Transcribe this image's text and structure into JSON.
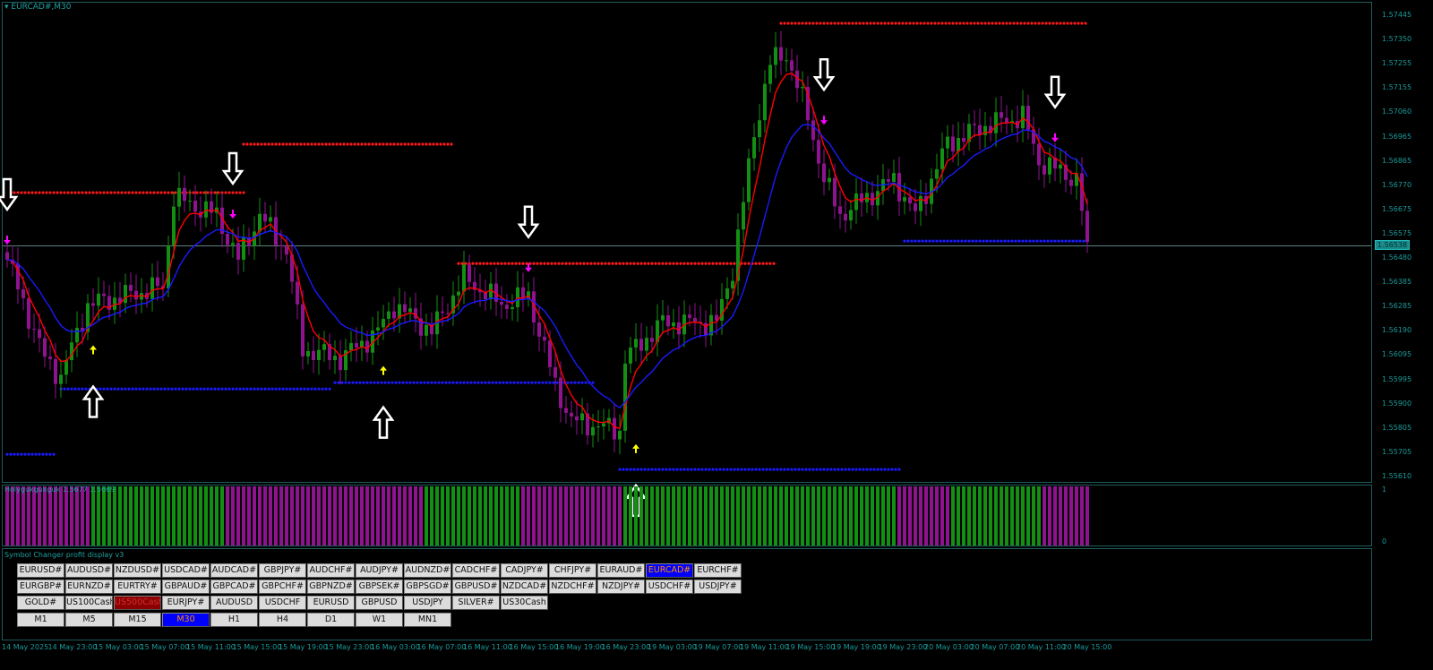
{
  "window": {
    "title": "EURCAD#,M30",
    "current_price": "1.56538"
  },
  "price_axis": [
    "1.57445",
    "1.57350",
    "1.57255",
    "1.57155",
    "1.57060",
    "1.56965",
    "1.56865",
    "1.56770",
    "1.56675",
    "1.56575",
    "1.56480",
    "1.56385",
    "1.56285",
    "1.56190",
    "1.56095",
    "1.55995",
    "1.55900",
    "1.55805",
    "1.55705",
    "1.55610"
  ],
  "chart": {
    "colors": {
      "bull": "#138f13",
      "bear": "#8f138f",
      "fast_ma": "#ff0000",
      "slow_ma": "#1a1aff",
      "resistance": "#ff1a1a",
      "support": "#1a1aff",
      "grid_line": "#5f8080"
    },
    "waypoints": [
      [
        0,
        1.56483
      ],
      [
        7,
        1.56092
      ],
      [
        10,
        1.56021
      ],
      [
        15,
        1.56305
      ],
      [
        29,
        1.56376
      ],
      [
        31,
        1.56731
      ],
      [
        39,
        1.5666
      ],
      [
        43,
        1.56483
      ],
      [
        47,
        1.5666
      ],
      [
        52,
        1.56518
      ],
      [
        55,
        1.56128
      ],
      [
        62,
        1.56092
      ],
      [
        69,
        1.56199
      ],
      [
        72,
        1.56305
      ],
      [
        79,
        1.56199
      ],
      [
        85,
        1.56412
      ],
      [
        92,
        1.56305
      ],
      [
        97,
        1.56341
      ],
      [
        102,
        1.55986
      ],
      [
        105,
        1.55844
      ],
      [
        114,
        1.55808
      ],
      [
        115,
        1.56092
      ],
      [
        122,
        1.56234
      ],
      [
        132,
        1.56234
      ],
      [
        135,
        1.56447
      ],
      [
        139,
        1.5698
      ],
      [
        142,
        1.57264
      ],
      [
        145,
        1.57299
      ],
      [
        149,
        1.57051
      ],
      [
        152,
        1.56802
      ],
      [
        155,
        1.5666
      ],
      [
        165,
        1.56802
      ],
      [
        169,
        1.5666
      ],
      [
        175,
        1.56944
      ],
      [
        182,
        1.57015
      ],
      [
        189,
        1.57051
      ],
      [
        192,
        1.56873
      ],
      [
        199,
        1.56802
      ],
      [
        201,
        1.56554
      ]
    ],
    "resistance_levels": [
      {
        "price": 1.56749,
        "from": 0,
        "to": 44
      },
      {
        "price": 1.56941,
        "from": 44,
        "to": 83
      },
      {
        "price": 1.56468,
        "from": 84,
        "to": 143
      },
      {
        "price": 1.5742,
        "from": 144,
        "to": 201
      }
    ],
    "support_levels": [
      {
        "price": 1.55712,
        "from": 0,
        "to": 9
      },
      {
        "price": 1.55971,
        "from": 10,
        "to": 60
      },
      {
        "price": 1.55996,
        "from": 61,
        "to": 109
      },
      {
        "price": 1.55652,
        "from": 114,
        "to": 166
      },
      {
        "price": 1.56557,
        "from": 167,
        "to": 201
      }
    ],
    "sell_arrows": [
      0,
      42,
      97,
      152,
      195
    ],
    "buy_arrows": [
      16,
      70,
      117
    ],
    "current_price": 1.56538
  },
  "indicator": {
    "label": "Holygukgukguk 1.5677 1.5669",
    "scale": [
      "1",
      "0"
    ],
    "segments": [
      [
        0,
        15,
        "bear"
      ],
      [
        16,
        40,
        "bull"
      ],
      [
        41,
        77,
        "bear"
      ],
      [
        78,
        95,
        "bull"
      ],
      [
        96,
        114,
        "bear"
      ],
      [
        115,
        165,
        "bull"
      ],
      [
        166,
        175,
        "bear"
      ],
      [
        176,
        192,
        "bull"
      ],
      [
        193,
        201,
        "bear"
      ]
    ]
  },
  "panel": {
    "title": "Symbol Changer profit display v3",
    "rows": [
      [
        "EURUSD#",
        "AUDUSD#",
        "NZDUSD#",
        "USDCAD#",
        "AUDCAD#",
        "GBPJPY#",
        "AUDCHF#",
        "AUDJPY#",
        "AUDNZD#",
        "CADCHF#",
        "CADJPY#",
        "CHFJPY#",
        "EURAUD#",
        "EURCAD#",
        "EURCHF#"
      ],
      [
        "EURGBP#",
        "EURNZD#",
        "EURTRY#",
        "GBPAUD#",
        "GBPCAD#",
        "GBPCHF#",
        "GBPNZD#",
        "GBPSEK#",
        "GBPSGD#",
        "GBPUSD#",
        "NZDCAD#",
        "NZDCHF#",
        "NZDJPY#",
        "USDCHF#",
        "USDJPY#"
      ],
      [
        "GOLD#",
        "US100Cash",
        "US500Cash",
        "EURJPY#",
        "AUDUSD",
        "USDCHF",
        "EURUSD",
        "GBPUSD",
        "USDJPY",
        "SILVER#",
        "US30Cash"
      ]
    ],
    "selected_symbol": "EURCAD#",
    "highlighted_symbol": "US500Cash",
    "timeframes": [
      "M1",
      "M5",
      "M15",
      "M30",
      "H1",
      "H4",
      "D1",
      "W1",
      "MN1"
    ],
    "selected_timeframe": "M30"
  },
  "time_axis": [
    "14 May 2025",
    "14 May 23:00",
    "15 May 03:00",
    "15 May 07:00",
    "15 May 11:00",
    "15 May 15:00",
    "15 May 19:00",
    "15 May 23:00",
    "16 May 03:00",
    "16 May 07:00",
    "16 May 11:00",
    "16 May 15:00",
    "16 May 19:00",
    "16 May 23:00",
    "19 May 03:00",
    "19 May 07:00",
    "19 May 11:00",
    "19 May 15:00",
    "19 May 19:00",
    "19 May 23:00",
    "20 May 03:00",
    "20 May 07:00",
    "20 May 11:00",
    "20 May 15:00"
  ]
}
